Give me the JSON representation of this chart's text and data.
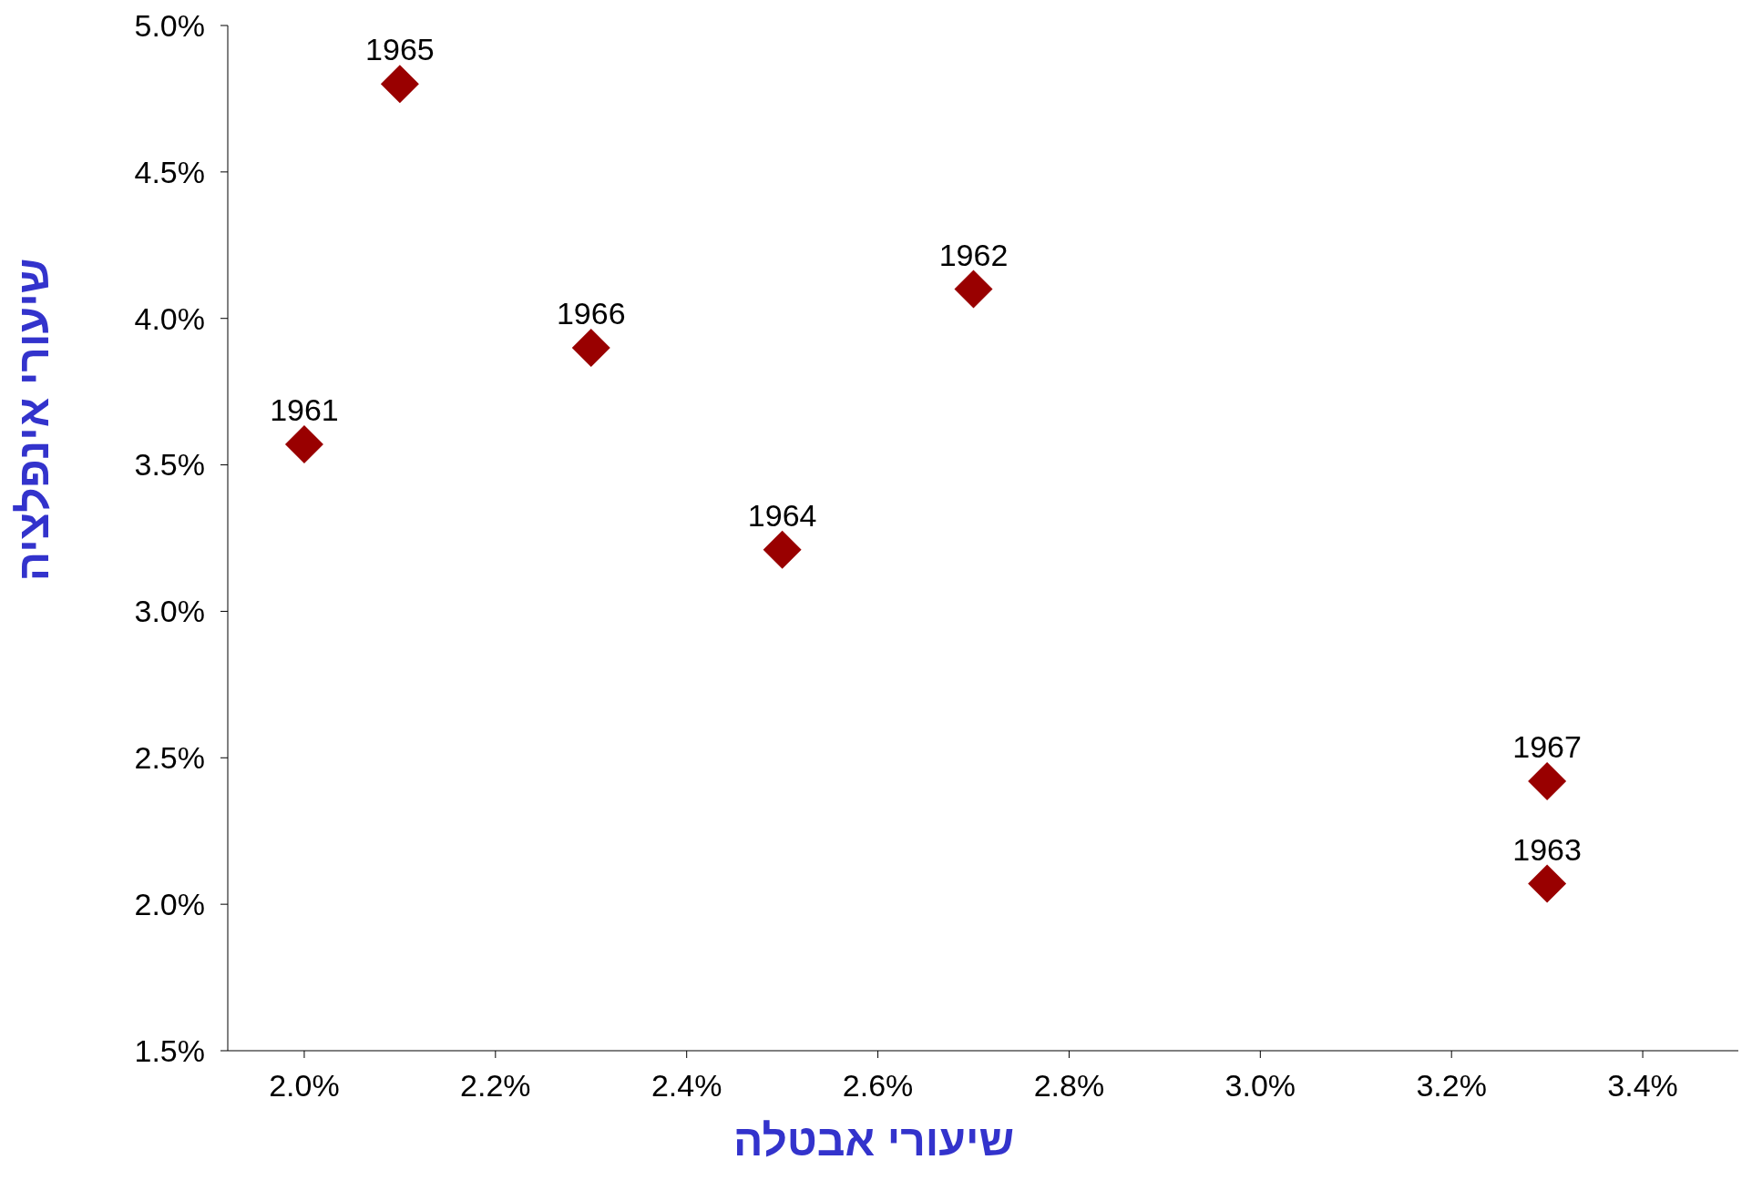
{
  "chart_data": {
    "type": "scatter",
    "xlabel": "שיעורי אבטלה",
    "ylabel": "שיעורי אינפלציה",
    "x": [
      2.0,
      2.7,
      3.3,
      2.5,
      2.1,
      2.3,
      3.3
    ],
    "values": [
      3.57,
      4.1,
      2.07,
      3.21,
      4.8,
      3.9,
      2.42
    ],
    "annotations": [
      {
        "text": "1961",
        "x": 2.0,
        "y": 3.57
      },
      {
        "text": "1962",
        "x": 2.7,
        "y": 4.1
      },
      {
        "text": "1963",
        "x": 3.3,
        "y": 2.07
      },
      {
        "text": "1964",
        "x": 2.5,
        "y": 3.21
      },
      {
        "text": "1965",
        "x": 2.1,
        "y": 4.8
      },
      {
        "text": "1966",
        "x": 2.3,
        "y": 3.9
      },
      {
        "text": "1967",
        "x": 3.3,
        "y": 2.42
      }
    ],
    "color": "#990000",
    "marker": "diamond",
    "grid": false,
    "xlim": [
      1.92,
      3.5
    ],
    "xticks": [
      {
        "value": 2.0,
        "label": "2.0%"
      },
      {
        "value": 2.2,
        "label": "2.2%"
      },
      {
        "value": 2.4,
        "label": "2.4%"
      },
      {
        "value": 2.6,
        "label": "2.6%"
      },
      {
        "value": 2.8,
        "label": "2.8%"
      },
      {
        "value": 3.0,
        "label": "3.0%"
      },
      {
        "value": 3.2,
        "label": "3.2%"
      },
      {
        "value": 3.4,
        "label": "3.4%"
      }
    ],
    "ylim": [
      1.5,
      5.0
    ],
    "yticks": [
      {
        "value": 1.5,
        "label": "1.5%"
      },
      {
        "value": 2.0,
        "label": "2.0%"
      },
      {
        "value": 2.5,
        "label": "2.5%"
      },
      {
        "value": 3.0,
        "label": "3.0%"
      },
      {
        "value": 3.5,
        "label": "3.5%"
      },
      {
        "value": 4.0,
        "label": "4.0%"
      },
      {
        "value": 4.5,
        "label": "4.5%"
      },
      {
        "value": 5.0,
        "label": "5.0%"
      }
    ]
  }
}
